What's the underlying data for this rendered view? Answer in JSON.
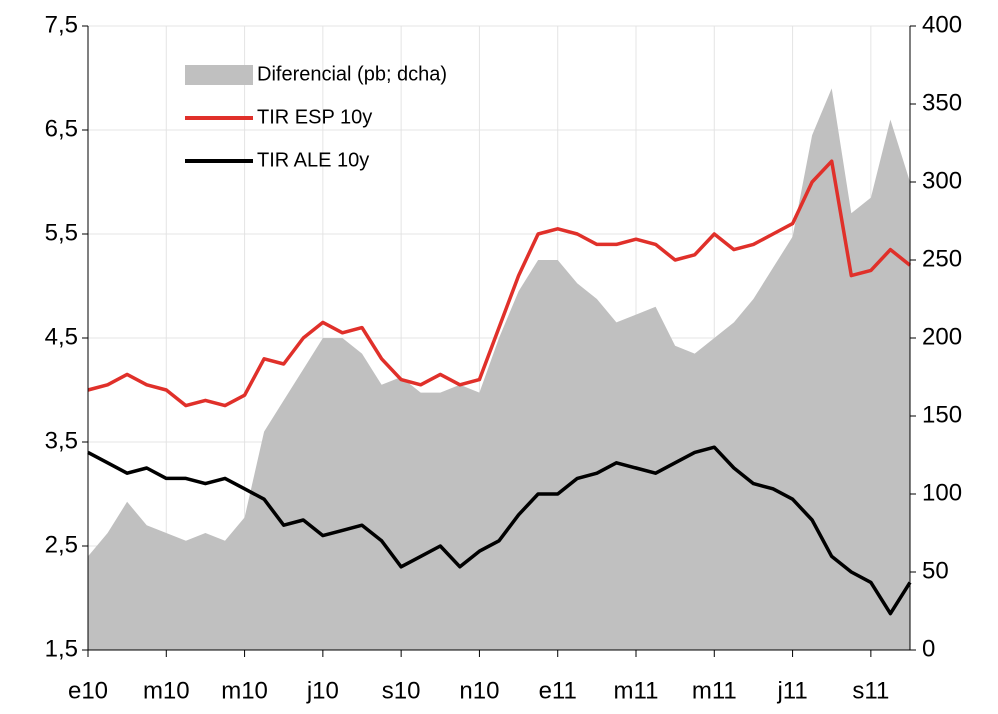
{
  "chart_data": {
    "type": "line",
    "categories": [
      "e10",
      null,
      null,
      null,
      "m10",
      null,
      null,
      null,
      "m10",
      null,
      null,
      null,
      "j10",
      null,
      null,
      null,
      "s10",
      null,
      null,
      null,
      "n10",
      null,
      null,
      null,
      "e11",
      null,
      null,
      null,
      "m11",
      null,
      null,
      null,
      "m11",
      null,
      null,
      null,
      "j11",
      null,
      null,
      null,
      "s11",
      null,
      null
    ],
    "series": [
      {
        "name": "Diferencial (pb; dcha)",
        "type": "area",
        "axis": "y2",
        "color": "#c0c0c0",
        "values": [
          60,
          75,
          95,
          80,
          75,
          70,
          75,
          70,
          85,
          140,
          160,
          180,
          200,
          200,
          190,
          170,
          175,
          165,
          165,
          170,
          165,
          200,
          230,
          250,
          250,
          235,
          225,
          210,
          215,
          220,
          195,
          190,
          200,
          210,
          225,
          245,
          265,
          330,
          360,
          280,
          290,
          340,
          300
        ]
      },
      {
        "name": "TIR ESP 10y",
        "type": "line",
        "color": "#e0302a",
        "values": [
          4.0,
          4.05,
          4.15,
          4.05,
          4.0,
          3.85,
          3.9,
          3.85,
          3.95,
          4.3,
          4.25,
          4.5,
          4.65,
          4.55,
          4.6,
          4.3,
          4.1,
          4.05,
          4.15,
          4.05,
          4.1,
          4.6,
          5.1,
          5.5,
          5.55,
          5.5,
          5.4,
          5.4,
          5.45,
          5.4,
          5.25,
          5.3,
          5.5,
          5.35,
          5.4,
          5.5,
          5.6,
          6.0,
          6.2,
          5.1,
          5.15,
          5.35,
          5.2
        ]
      },
      {
        "name": "TIR ALE 10y",
        "type": "line",
        "color": "#000000",
        "values": [
          3.4,
          3.3,
          3.2,
          3.25,
          3.15,
          3.15,
          3.1,
          3.15,
          3.05,
          2.95,
          2.7,
          2.75,
          2.6,
          2.65,
          2.7,
          2.55,
          2.3,
          2.4,
          2.5,
          2.3,
          2.45,
          2.55,
          2.8,
          3.0,
          3.0,
          3.15,
          3.2,
          3.3,
          3.25,
          3.2,
          3.3,
          3.4,
          3.45,
          3.25,
          3.1,
          3.05,
          2.95,
          2.75,
          2.4,
          2.25,
          2.15,
          1.85,
          2.15
        ]
      }
    ],
    "ylim": [
      1.5,
      7.5
    ],
    "yticks": [
      {
        "value": 1.5,
        "label": "1,5"
      },
      {
        "value": 2.5,
        "label": "2,5"
      },
      {
        "value": 3.5,
        "label": "3,5"
      },
      {
        "value": 4.5,
        "label": "4,5"
      },
      {
        "value": 5.5,
        "label": "5,5"
      },
      {
        "value": 6.5,
        "label": "6,5"
      },
      {
        "value": 7.5,
        "label": "7,5"
      }
    ],
    "y2lim": [
      0,
      400
    ],
    "y2ticks": [
      0,
      50,
      100,
      150,
      200,
      250,
      300,
      350,
      400
    ],
    "grid": true
  }
}
